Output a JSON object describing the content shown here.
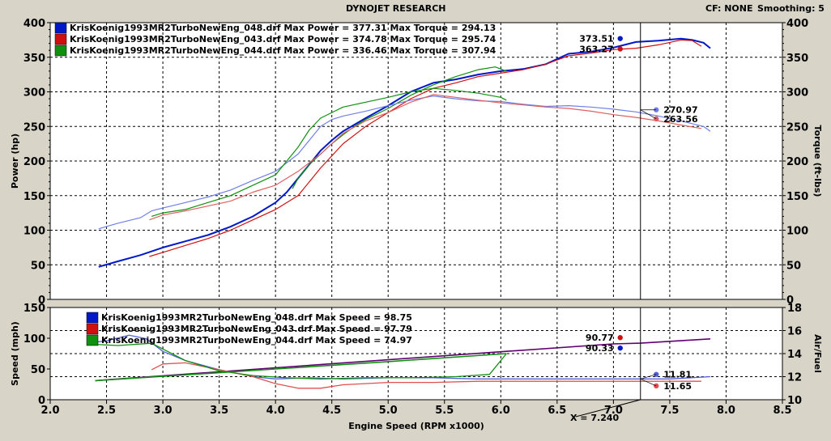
{
  "header": {
    "title": "DYNOJET RESEARCH",
    "cf_label": "CF: NONE",
    "smoothing_label": "Smoothing: 5"
  },
  "colors": {
    "run_048": "#0018c8",
    "run_048_light": "#7080e8",
    "run_043": "#d01010",
    "run_043_light": "#e06060",
    "run_044": "#109010",
    "run_044_light": "#20a020",
    "afr_048": "#5060e0",
    "afr_043": "#e05050",
    "speed_combined": "#600070",
    "panel_bg": "#ffffff",
    "frame_bg": "#d8d4c8",
    "cursor_line": "#000000"
  },
  "cursor": {
    "x_label": "X = 7.240",
    "x_value": 7.24,
    "top_power_048": "373.51",
    "top_power_043": "363.27",
    "top_torque_048": "270.97",
    "top_torque_043": "263.56",
    "bottom_speed_048": "90.77",
    "bottom_speed_043": "90.33",
    "bottom_afr_048": "11.81",
    "bottom_afr_043": "11.65"
  },
  "chart_data": [
    {
      "type": "line",
      "name": "power_torque",
      "xlabel": "Engine Speed (RPM x1000)",
      "ylabel": "Power (hp)",
      "ylabel_right": "Torque (ft-lbs)",
      "xlim": [
        2.0,
        8.5
      ],
      "ylim": [
        0,
        400
      ],
      "ylim_right": [
        0,
        400
      ],
      "xticks": [
        "2.0",
        "2.5",
        "3.0",
        "3.5",
        "4.0",
        "4.5",
        "5.0",
        "5.5",
        "6.0",
        "6.5",
        "7.0",
        "7.5",
        "8.0",
        "8.5"
      ],
      "yticks": [
        "0",
        "50",
        "100",
        "150",
        "200",
        "250",
        "300",
        "350",
        "400"
      ],
      "grid": true,
      "legend": [
        "KrisKoenig1993MR2TurboNewEng_048.drf Max Power = 377.31 Max Torque = 294.13",
        "KrisKoenig1993MR2TurboNewEng_043.drf Max Power = 374.78 Max Torque = 295.74",
        "KrisKoenig1993MR2TurboNewEng_044.drf Max Power = 336.46 Max Torque = 307.94"
      ],
      "series": [
        {
          "name": "KrisKoenig1993MR2TurboNewEng_048.drf Max Power = 377.31",
          "kind": "power",
          "color_key": "run_048",
          "x": [
            2.43,
            2.6,
            2.8,
            3.0,
            3.2,
            3.4,
            3.6,
            3.8,
            4.0,
            4.1,
            4.2,
            4.3,
            4.4,
            4.5,
            4.6,
            4.8,
            5.0,
            5.2,
            5.4,
            5.6,
            5.8,
            6.0,
            6.2,
            6.4,
            6.6,
            6.8,
            7.0,
            7.2,
            7.4,
            7.6,
            7.7,
            7.8,
            7.86
          ],
          "y": [
            47,
            55,
            64,
            75,
            84,
            93,
            105,
            120,
            140,
            155,
            175,
            195,
            215,
            230,
            243,
            262,
            280,
            300,
            313,
            318,
            325,
            330,
            333,
            340,
            355,
            358,
            364,
            372,
            374,
            377,
            375,
            371,
            363
          ]
        },
        {
          "name": "KrisKoenig1993MR2TurboNewEng_043.drf Max Power = 374.78",
          "kind": "power",
          "color_key": "run_043",
          "x": [
            2.88,
            3.0,
            3.2,
            3.4,
            3.6,
            3.8,
            4.0,
            4.2,
            4.3,
            4.4,
            4.6,
            4.8,
            5.0,
            5.2,
            5.4,
            5.6,
            5.8,
            6.0,
            6.2,
            6.4,
            6.6,
            6.8,
            7.0,
            7.2,
            7.4,
            7.6,
            7.7,
            7.78
          ],
          "y": [
            62,
            68,
            78,
            88,
            100,
            115,
            130,
            150,
            170,
            190,
            225,
            250,
            270,
            290,
            305,
            313,
            322,
            327,
            332,
            340,
            352,
            356,
            361,
            363,
            368,
            375,
            374,
            366
          ]
        },
        {
          "name": "KrisKoenig1993MR2TurboNewEng_044.drf Max Power = 336.46",
          "kind": "power",
          "color_key": "run_044",
          "x": [
            4.15,
            4.2,
            4.3,
            4.4,
            4.5,
            4.6,
            4.7,
            4.8,
            4.9,
            5.0,
            5.2,
            5.4,
            5.6,
            5.8,
            5.95,
            6.05
          ],
          "y": [
            160,
            175,
            195,
            210,
            225,
            238,
            250,
            260,
            268,
            276,
            295,
            310,
            322,
            332,
            336,
            330
          ]
        },
        {
          "name": "KrisKoenig1993MR2TurboNewEng_048.drf Max Torque = 294.13",
          "kind": "torque",
          "color_key": "run_048_light",
          "x": [
            2.43,
            2.6,
            2.8,
            2.9,
            3.0,
            3.2,
            3.4,
            3.6,
            3.8,
            4.0,
            4.2,
            4.3,
            4.4,
            4.5,
            4.6,
            4.8,
            5.0,
            5.2,
            5.4,
            5.6,
            5.8,
            6.0,
            6.2,
            6.4,
            6.6,
            6.8,
            7.0,
            7.2,
            7.4,
            7.6,
            7.8,
            7.86
          ],
          "y": [
            102,
            110,
            118,
            128,
            132,
            140,
            148,
            158,
            172,
            185,
            210,
            230,
            250,
            260,
            265,
            272,
            280,
            288,
            294,
            290,
            287,
            286,
            282,
            279,
            280,
            278,
            275,
            271,
            265,
            258,
            250,
            243
          ]
        },
        {
          "name": "KrisKoenig1993MR2TurboNewEng_043.drf Max Torque = 295.74",
          "kind": "torque",
          "color_key": "run_043_light",
          "x": [
            2.88,
            3.0,
            3.2,
            3.4,
            3.6,
            3.8,
            4.0,
            4.2,
            4.4,
            4.6,
            4.8,
            5.0,
            5.2,
            5.4,
            5.6,
            5.8,
            6.0,
            6.2,
            6.4,
            6.6,
            6.8,
            7.0,
            7.2,
            7.4,
            7.6,
            7.78
          ],
          "y": [
            115,
            122,
            128,
            135,
            142,
            155,
            165,
            185,
            210,
            240,
            258,
            270,
            285,
            296,
            292,
            288,
            284,
            281,
            278,
            276,
            272,
            267,
            263,
            258,
            252,
            247
          ]
        },
        {
          "name": "KrisKoenig1993MR2TurboNewEng_044.drf Max Torque = 307.94",
          "kind": "torque",
          "color_key": "run_044",
          "x": [
            2.9,
            3.0,
            3.2,
            3.4,
            3.6,
            3.8,
            4.0,
            4.1,
            4.2,
            4.3,
            4.4,
            4.5,
            4.6,
            4.8,
            5.0,
            5.2,
            5.4,
            5.6,
            5.8,
            6.0,
            6.05
          ],
          "y": [
            120,
            125,
            130,
            140,
            150,
            165,
            180,
            200,
            220,
            245,
            262,
            270,
            278,
            285,
            292,
            300,
            305,
            302,
            298,
            292,
            288
          ]
        }
      ]
    },
    {
      "type": "line",
      "name": "speed_afr",
      "xlabel": "Engine Speed (RPM x1000)",
      "ylabel": "Speed (mph)",
      "ylabel_right": "Air/Fuel",
      "xlim": [
        2.0,
        8.5
      ],
      "ylim": [
        0,
        150
      ],
      "ylim_right": [
        10,
        18
      ],
      "xticks": [
        "2.0",
        "2.5",
        "3.0",
        "3.5",
        "4.0",
        "4.5",
        "5.0",
        "5.5",
        "6.0",
        "6.5",
        "7.0",
        "7.5",
        "8.0",
        "8.5"
      ],
      "yticks": [
        "0",
        "50",
        "100",
        "150"
      ],
      "yticks_right": [
        "10",
        "12",
        "14",
        "16",
        "18"
      ],
      "grid": true,
      "legend": [
        "KrisKoenig1993MR2TurboNewEng_048.drf Max Speed = 98.75",
        "KrisKoenig1993MR2TurboNewEng_043.drf Max Speed = 97.79",
        "KrisKoenig1993MR2TurboNewEng_044.drf Max Speed = 74.97"
      ],
      "series": [
        {
          "name": "KrisKoenig1993MR2TurboNewEng_048.drf Max Speed = 98.75",
          "kind": "speed",
          "axis": "left",
          "color_key": "speed_combined",
          "x": [
            2.4,
            3.0,
            4.0,
            5.0,
            6.0,
            7.0,
            7.24,
            7.86
          ],
          "y": [
            31,
            39,
            52,
            65,
            78,
            90.8,
            92,
            99
          ]
        },
        {
          "name": "KrisKoenig1993MR2TurboNewEng_044.drf Max Speed = 74.97",
          "kind": "speed",
          "axis": "left",
          "color_key": "run_044",
          "x": [
            2.4,
            3.0,
            4.0,
            5.0,
            6.05
          ],
          "y": [
            31,
            38,
            50,
            62,
            75
          ]
        },
        {
          "name": "048 Air/Fuel",
          "kind": "afr",
          "axis": "right",
          "color_key": "afr_048",
          "x": [
            2.4,
            2.5,
            2.7,
            2.85,
            3.0,
            3.2,
            3.5,
            3.8,
            4.0,
            4.3,
            4.6,
            5.0,
            5.4,
            5.8,
            6.2,
            6.6,
            7.0,
            7.24,
            7.5,
            7.86
          ],
          "y": [
            15.0,
            15.1,
            15.6,
            15.3,
            14.2,
            13.4,
            12.6,
            12.0,
            11.8,
            11.9,
            11.8,
            11.9,
            11.9,
            11.8,
            11.8,
            11.8,
            11.8,
            11.8,
            11.8,
            12.0
          ]
        },
        {
          "name": "043 Air/Fuel",
          "kind": "afr",
          "axis": "right",
          "color_key": "afr_043",
          "x": [
            2.9,
            3.0,
            3.2,
            3.5,
            3.8,
            4.0,
            4.2,
            4.4,
            4.6,
            5.0,
            5.4,
            5.8,
            6.2,
            6.6,
            7.0,
            7.24,
            7.5,
            7.78
          ],
          "y": [
            12.6,
            13.1,
            13.2,
            12.6,
            12.0,
            11.4,
            11.0,
            11.0,
            11.3,
            11.5,
            11.5,
            11.6,
            11.6,
            11.6,
            11.6,
            11.6,
            11.6,
            11.6
          ]
        },
        {
          "name": "044 Air/Fuel",
          "kind": "afr",
          "axis": "right",
          "color_key": "run_044",
          "x": [
            2.4,
            2.6,
            2.9,
            3.2,
            3.5,
            3.8,
            4.1,
            4.4,
            4.8,
            5.2,
            5.6,
            5.9,
            6.05
          ],
          "y": [
            14.8,
            14.7,
            14.9,
            13.4,
            12.5,
            12.1,
            11.9,
            11.8,
            11.9,
            11.9,
            12.0,
            12.2,
            14.0
          ]
        }
      ]
    }
  ]
}
